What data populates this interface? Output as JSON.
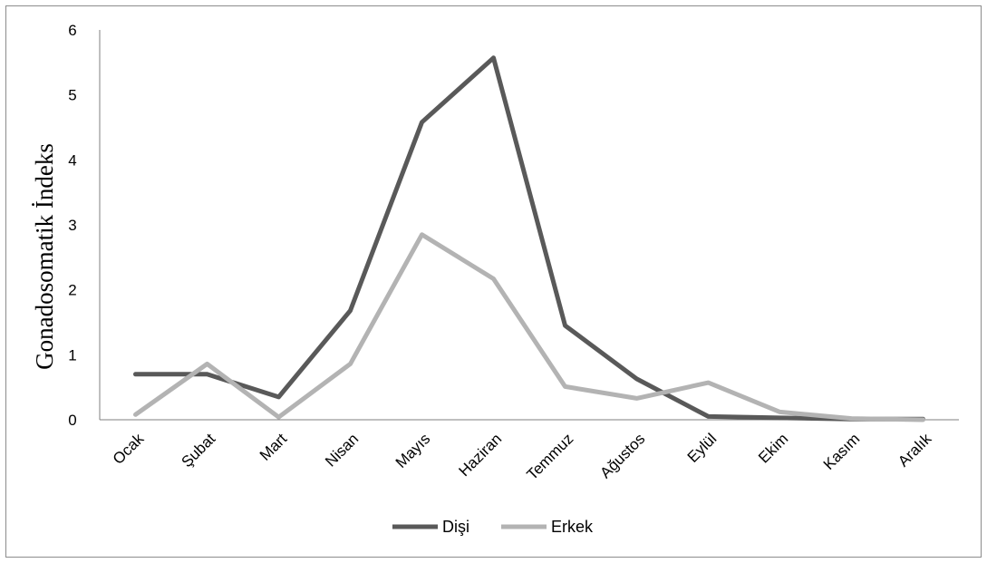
{
  "chart_data": {
    "type": "line",
    "title": "",
    "xlabel": "",
    "ylabel": "Gonadosomatik İndeks",
    "ylim": [
      0,
      6
    ],
    "yticks": [
      "0",
      "1",
      "2",
      "3",
      "4",
      "5",
      "6"
    ],
    "grid": false,
    "legend_position": "bottom",
    "categories": [
      "Ocak",
      "Şubat",
      "Mart",
      "Nisan",
      "Mayıs",
      "Haziran",
      "Temmuz",
      "Ağustos",
      "Eylül",
      "Ekim",
      "Kasım",
      "Aralık"
    ],
    "series": [
      {
        "name": "Dişi",
        "color": "#595959",
        "values": [
          0.7,
          0.7,
          0.35,
          1.68,
          4.58,
          5.57,
          1.45,
          0.63,
          0.05,
          0.03,
          0.01,
          0.01
        ]
      },
      {
        "name": "Erkek",
        "color": "#b3b3b3",
        "values": [
          0.08,
          0.86,
          0.04,
          0.86,
          2.85,
          2.17,
          0.51,
          0.33,
          0.57,
          0.12,
          0.02,
          0.0
        ]
      }
    ]
  }
}
